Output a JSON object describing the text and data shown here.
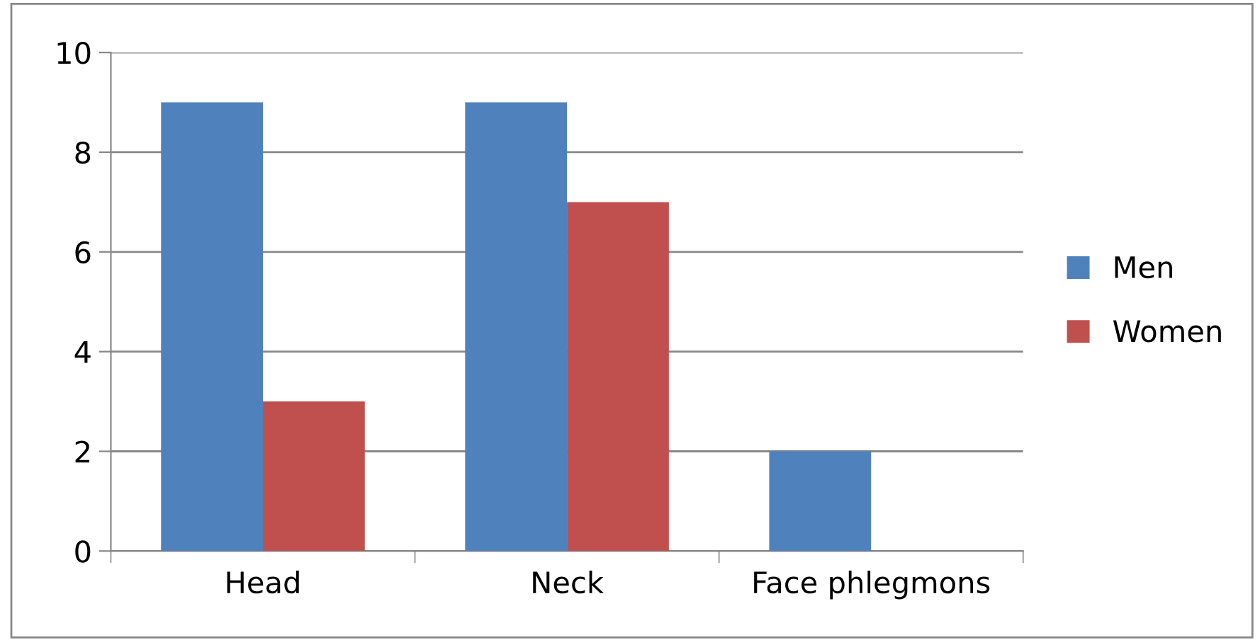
{
  "chart_data": {
    "type": "bar",
    "categories": [
      "Head",
      "Neck",
      "Face phlegmons"
    ],
    "series": [
      {
        "name": "Men",
        "color": "#4f81bd",
        "values": [
          9,
          9,
          2
        ]
      },
      {
        "name": "Women",
        "color": "#c0504d",
        "values": [
          3,
          7,
          0
        ]
      }
    ],
    "ylim": [
      0,
      10
    ],
    "yticks": [
      0,
      2,
      4,
      6,
      8,
      10
    ],
    "grid": "y",
    "legend": "right"
  }
}
